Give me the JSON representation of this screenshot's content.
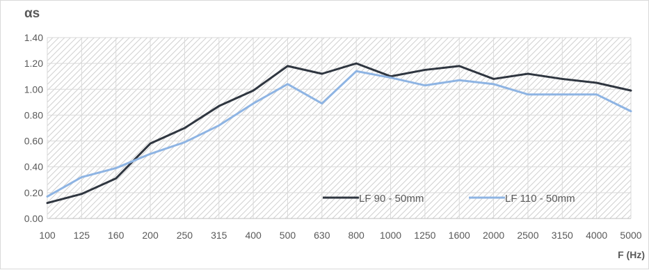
{
  "chart_data": {
    "type": "line",
    "title": "",
    "ylabel": "αs",
    "xlabel": "F (Hz)",
    "ylim": [
      0,
      1.4
    ],
    "ystep": 0.2,
    "y_ticks": [
      "0.00",
      "0.20",
      "0.40",
      "0.60",
      "0.80",
      "1.00",
      "1.20",
      "1.40"
    ],
    "categories": [
      "100",
      "125",
      "160",
      "200",
      "250",
      "315",
      "400",
      "500",
      "630",
      "800",
      "1000",
      "1250",
      "1600",
      "2000",
      "2500",
      "3150",
      "4000",
      "5000"
    ],
    "grid": true,
    "plot_background": "diagonal hatch",
    "legend_position": "bottom-right (inside plot)",
    "series": [
      {
        "name": "LF 90 - 50mm",
        "color": "#2f3640",
        "values": [
          0.12,
          0.19,
          0.31,
          0.58,
          0.7,
          0.87,
          0.99,
          1.18,
          1.12,
          1.2,
          1.1,
          1.15,
          1.18,
          1.08,
          1.12,
          1.08,
          1.05,
          0.99
        ]
      },
      {
        "name": "LF 110 - 50mm",
        "color": "#8eb4e3",
        "values": [
          0.17,
          0.32,
          0.39,
          0.5,
          0.59,
          0.72,
          0.89,
          1.04,
          0.89,
          1.14,
          1.09,
          1.03,
          1.07,
          1.04,
          0.96,
          0.96,
          0.96,
          0.83
        ]
      }
    ]
  }
}
